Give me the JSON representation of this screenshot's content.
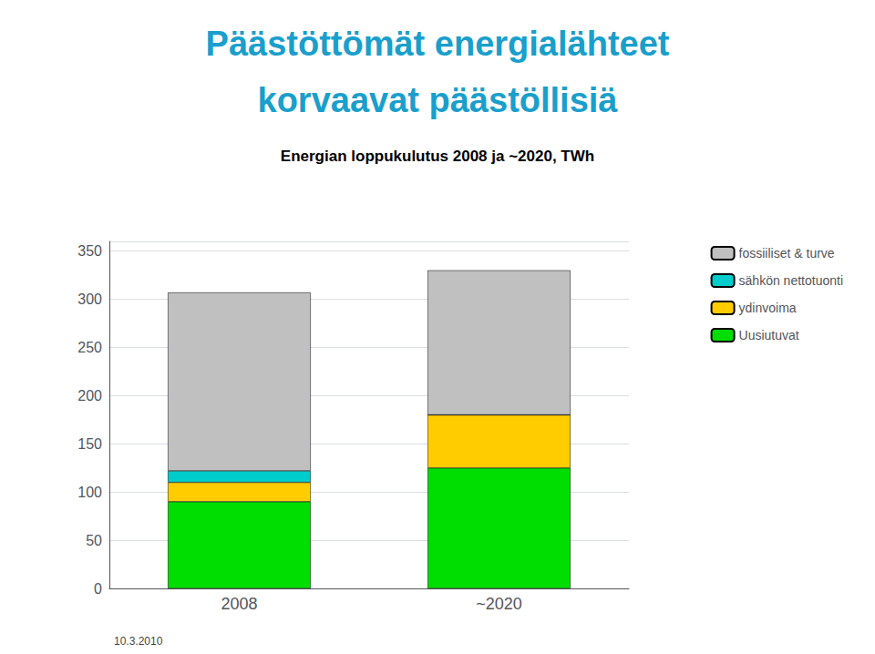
{
  "chart_data": {
    "type": "bar",
    "stacked": true,
    "title": "Päästöttömät energialähteet\nkorvaavat päästöllisiä",
    "subtitle": "Energian loppukulutus 2008 ja ~2020, TWh",
    "annotations": [
      "10.3.2010"
    ],
    "categories": [
      "2008",
      "~2020"
    ],
    "series": [
      {
        "name": "Uusiutuvat",
        "color": "#00dd00",
        "values": [
          90,
          125
        ]
      },
      {
        "name": "ydinvoima",
        "color": "#ffcc00",
        "values": [
          20,
          55
        ]
      },
      {
        "name": "sähkön nettotuonti",
        "color": "#00cccc",
        "values": [
          12,
          0
        ]
      },
      {
        "name": "fossiiliset & turve",
        "color": "#c0c0c0",
        "values": [
          185,
          150
        ]
      }
    ],
    "ylim": [
      0,
      360
    ],
    "yticks": [
      0,
      50,
      100,
      150,
      200,
      250,
      300,
      350
    ],
    "grid": true,
    "legend": "right"
  }
}
